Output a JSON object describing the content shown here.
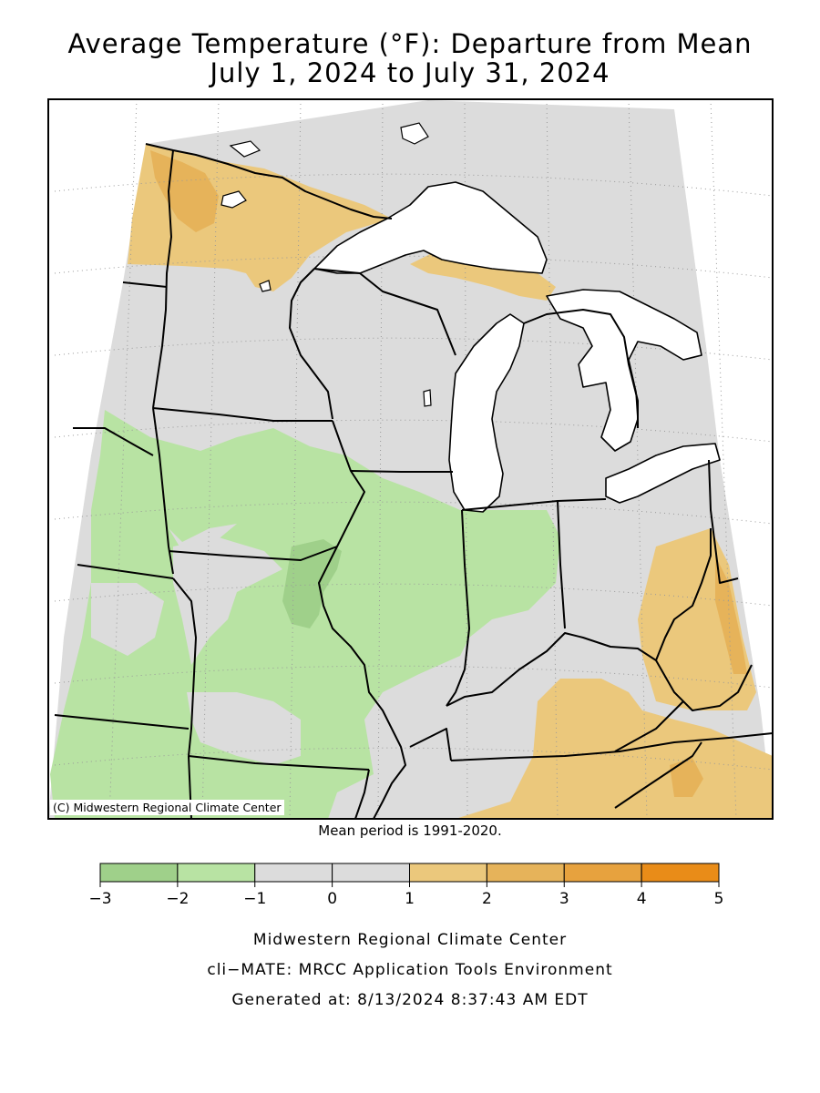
{
  "title": {
    "line1": "Average Temperature (°F): Departure from Mean",
    "line2": "July 1, 2024 to July 31, 2024"
  },
  "map": {
    "credit": "(C) Midwestern Regional Climate Center",
    "mean_period": "Mean period is 1991-2020.",
    "colors": {
      "land_base": "#dcdcdc",
      "lake_fill": "#ffffff",
      "border": "#000000",
      "graticule": "#999999"
    }
  },
  "legend": {
    "bins": [
      {
        "from": -3,
        "to": -2,
        "color": "#9fd08a"
      },
      {
        "from": -2,
        "to": -1,
        "color": "#b8e3a3"
      },
      {
        "from": -1,
        "to": 0,
        "color": "#dcdcdc"
      },
      {
        "from": 0,
        "to": 1,
        "color": "#dcdcdc"
      },
      {
        "from": 1,
        "to": 2,
        "color": "#ebc87c"
      },
      {
        "from": 2,
        "to": 3,
        "color": "#e6b35a"
      },
      {
        "from": 3,
        "to": 4,
        "color": "#e7a23e"
      },
      {
        "from": 4,
        "to": 5,
        "color": "#e98c18"
      }
    ],
    "tick_labels": [
      "−3",
      "−2",
      "−1",
      "0",
      "1",
      "2",
      "3",
      "4",
      "5"
    ]
  },
  "footer": {
    "line1": "Midwestern Regional Climate Center",
    "line2": "cli−MATE: MRCC Application Tools Environment",
    "line3": "Generated at: 8/13/2024 8:37:43 AM EDT"
  }
}
